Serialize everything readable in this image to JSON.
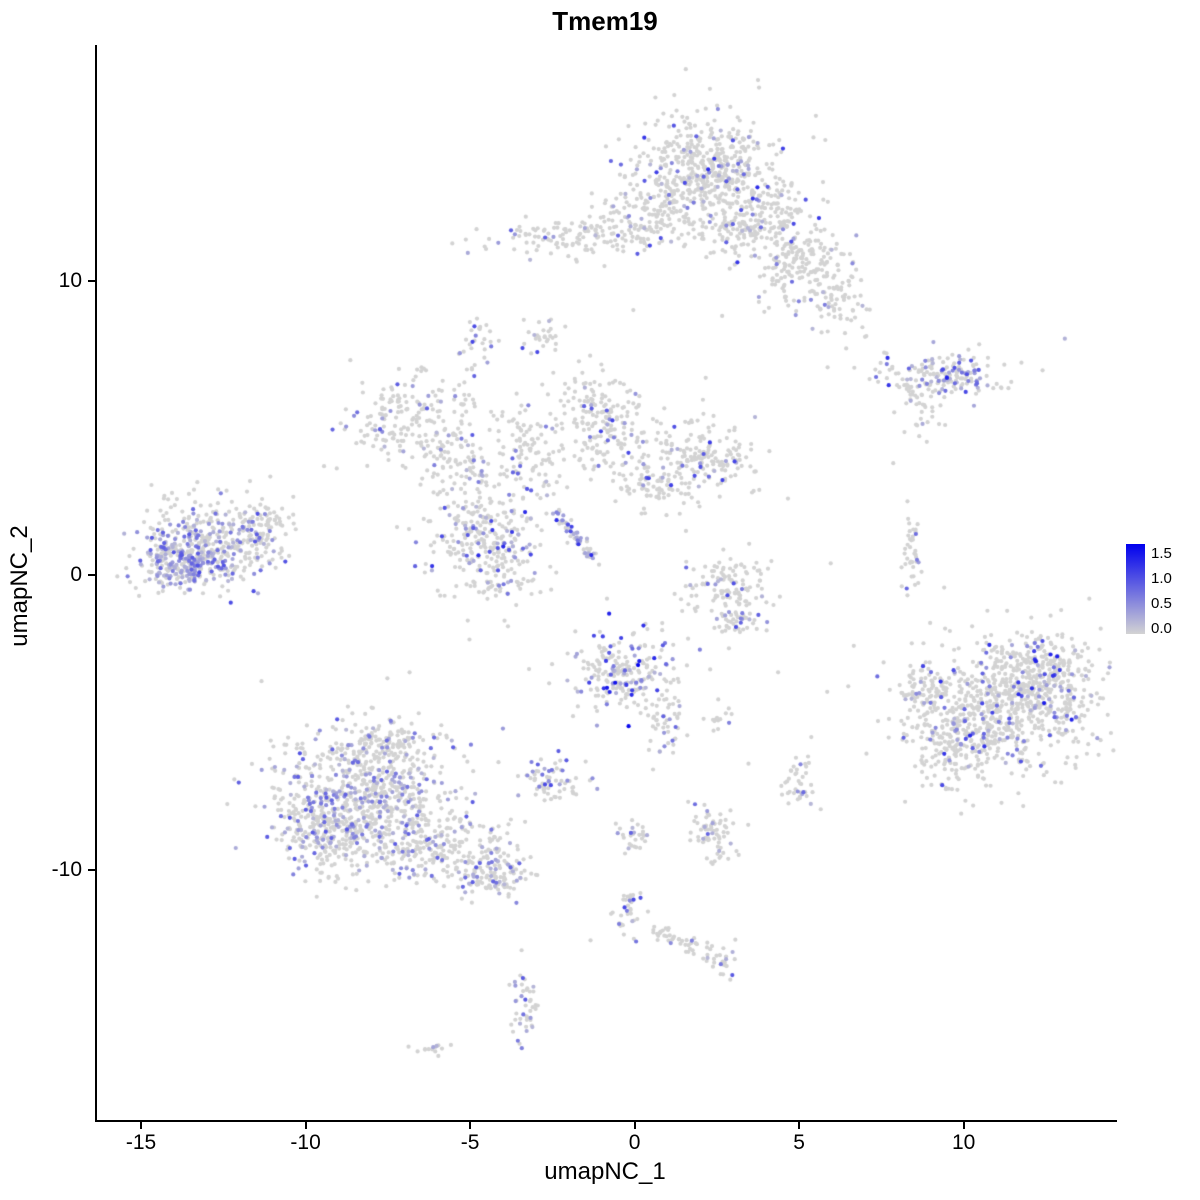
{
  "chart_data": {
    "type": "scatter",
    "title": "Tmem19",
    "xlabel": "umapNC_1",
    "ylabel": "umapNC_2",
    "x_ticks": [
      -15,
      -10,
      -5,
      0,
      5,
      10
    ],
    "x_tick_labels": [
      "-15",
      "-10",
      "-5",
      "0",
      "5",
      "10"
    ],
    "y_ticks": [
      -10,
      0,
      10
    ],
    "y_tick_labels": [
      "-10",
      "0",
      "10"
    ],
    "x_domain": [
      -16.4,
      14.6
    ],
    "y_domain": [
      -18.5,
      18.0
    ],
    "grid": false,
    "legend": {
      "labels": [
        "1.5",
        "1.0",
        "0.5",
        "0.0"
      ],
      "max_value": 1.5,
      "min_color": "#d3d3d3",
      "max_color": "#0000ee",
      "position": "right"
    },
    "point_color_zero": "#d3d3d3",
    "seed": 42,
    "cluster_format": [
      "x",
      "y",
      "sx",
      "sy",
      "n",
      "frac_expressing",
      "max_expr"
    ],
    "clusters": [
      [
        2.1,
        13.8,
        1.1,
        0.95,
        480,
        0.1,
        1.2
      ],
      [
        3.6,
        12.0,
        1.0,
        0.75,
        260,
        0.13,
        1.2
      ],
      [
        5.0,
        10.4,
        0.7,
        0.65,
        150,
        0.08,
        1.0
      ],
      [
        -1.9,
        11.5,
        1.3,
        0.35,
        140,
        0.12,
        1.0
      ],
      [
        0.6,
        12.4,
        0.9,
        0.6,
        130,
        0.08,
        1.0
      ],
      [
        6.2,
        9.4,
        0.45,
        0.7,
        70,
        0.06,
        0.8
      ],
      [
        -2.7,
        8.0,
        0.3,
        0.35,
        28,
        0.12,
        1.0
      ],
      [
        8.9,
        6.8,
        1.2,
        0.35,
        120,
        0.2,
        1.2
      ],
      [
        9.9,
        6.7,
        0.45,
        0.35,
        60,
        0.5,
        1.3
      ],
      [
        8.6,
        5.7,
        0.3,
        0.55,
        35,
        0.1,
        0.8
      ],
      [
        -6.8,
        5.4,
        1.0,
        0.7,
        190,
        0.12,
        1.0
      ],
      [
        -5.4,
        3.9,
        0.55,
        0.75,
        100,
        0.1,
        0.9
      ],
      [
        -4.6,
        1.0,
        0.9,
        1.0,
        330,
        0.16,
        1.2
      ],
      [
        -1.2,
        5.3,
        0.75,
        0.85,
        210,
        0.12,
        1.1
      ],
      [
        1.9,
        3.9,
        0.85,
        0.7,
        200,
        0.12,
        1.1
      ],
      [
        -3.3,
        4.3,
        0.4,
        0.8,
        80,
        0.1,
        0.9
      ],
      [
        -4.8,
        7.9,
        0.25,
        0.5,
        30,
        0.15,
        1.0
      ],
      [
        0.3,
        3.1,
        0.5,
        0.4,
        60,
        0.08,
        0.9
      ],
      [
        -13.0,
        1.0,
        1.1,
        0.75,
        420,
        0.3,
        1.0
      ],
      [
        -13.8,
        0.4,
        0.6,
        0.45,
        180,
        0.55,
        0.9
      ],
      [
        -11.3,
        1.7,
        0.5,
        0.5,
        60,
        0.08,
        0.8
      ],
      [
        2.8,
        -0.5,
        0.65,
        0.6,
        130,
        0.12,
        1.0
      ],
      [
        3.1,
        -1.6,
        0.35,
        0.3,
        35,
        0.15,
        1.0
      ],
      [
        8.35,
        0.7,
        0.16,
        0.75,
        40,
        0.1,
        0.8
      ],
      [
        -0.4,
        -3.3,
        0.85,
        0.7,
        230,
        0.28,
        1.5
      ],
      [
        0.9,
        -4.9,
        0.3,
        0.55,
        45,
        0.15,
        1.0
      ],
      [
        2.4,
        -4.9,
        0.18,
        0.25,
        14,
        0.1,
        0.8
      ],
      [
        -8.3,
        -7.4,
        1.35,
        1.05,
        650,
        0.22,
        0.9
      ],
      [
        -9.3,
        -8.8,
        0.75,
        0.75,
        240,
        0.25,
        0.9
      ],
      [
        -6.1,
        -9.2,
        1.05,
        0.65,
        240,
        0.18,
        0.9
      ],
      [
        -4.3,
        -10.2,
        0.55,
        0.4,
        120,
        0.28,
        0.9
      ],
      [
        -7.6,
        -5.7,
        0.7,
        0.5,
        110,
        0.15,
        0.8
      ],
      [
        -2.5,
        -6.9,
        0.5,
        0.35,
        70,
        0.3,
        1.0
      ],
      [
        11.2,
        -4.4,
        1.35,
        1.15,
        750,
        0.11,
        1.3
      ],
      [
        9.5,
        -5.7,
        0.6,
        0.85,
        150,
        0.1,
        1.0
      ],
      [
        12.5,
        -3.5,
        0.65,
        0.8,
        200,
        0.15,
        1.3
      ],
      [
        8.6,
        -3.7,
        0.3,
        0.45,
        40,
        0.1,
        0.9
      ],
      [
        2.3,
        -8.8,
        0.35,
        0.5,
        70,
        0.2,
        1.0
      ],
      [
        5.0,
        -7.2,
        0.25,
        0.5,
        40,
        0.15,
        0.9
      ],
      [
        -0.1,
        -8.9,
        0.3,
        0.3,
        28,
        0.1,
        0.8
      ],
      [
        -0.3,
        -11.4,
        0.25,
        0.4,
        35,
        0.25,
        1.0
      ],
      [
        2.6,
        -13.2,
        0.22,
        0.3,
        22,
        0.15,
        0.9
      ],
      [
        -3.4,
        -14.6,
        0.22,
        0.65,
        45,
        0.25,
        1.0
      ],
      [
        -6.1,
        -16.1,
        0.3,
        0.15,
        14,
        0.1,
        0.8
      ]
    ],
    "line_format": [
      "x1",
      "y1",
      "x2",
      "y2",
      "jitter",
      "n",
      "frac_expressing",
      "max_expr"
    ],
    "lines": [
      [
        -2.4,
        2.1,
        -1.3,
        0.5,
        0.12,
        55,
        0.55,
        1.2
      ],
      [
        0.6,
        -12.1,
        2.3,
        -12.9,
        0.12,
        45,
        0.08,
        0.8
      ]
    ],
    "singles": [
      [
        4.6,
        2.6
      ],
      [
        2.1,
        6.7
      ],
      [
        7.8,
        3.8
      ],
      [
        5.9,
        0.4
      ],
      [
        4.3,
        -3.3
      ],
      [
        6.6,
        -2.4
      ],
      [
        -11.4,
        -3.6
      ],
      [
        0.5,
        -6.6
      ],
      [
        3.4,
        -6.4
      ],
      [
        -1.4,
        -12.4
      ],
      [
        6.4,
        8.7
      ],
      [
        -0.1,
        9.0
      ],
      [
        2.6,
        8.8
      ],
      [
        -6.9,
        -3.3
      ],
      [
        -0.9,
        -0.8
      ],
      [
        1.5,
        1.5
      ],
      [
        -8.7,
        7.3
      ],
      [
        -9.5,
        3.7
      ]
    ]
  }
}
